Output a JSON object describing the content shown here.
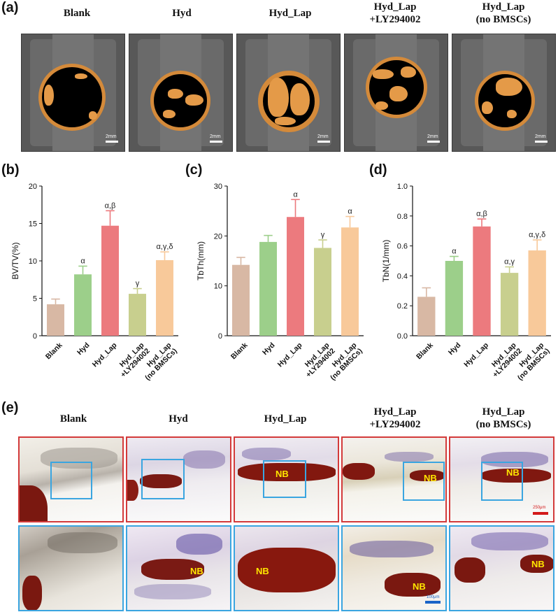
{
  "panel_labels": {
    "a": "(a)",
    "b": "(b)",
    "c": "(c)",
    "d": "(d)",
    "e": "(e)"
  },
  "groups": [
    {
      "line1": "Blank",
      "line2": ""
    },
    {
      "line1": "Hyd",
      "line2": ""
    },
    {
      "line1": "Hyd_Lap",
      "line2": ""
    },
    {
      "line1": "Hyd_Lap",
      "line2": "+LY294002"
    },
    {
      "line1": "Hyd_Lap",
      "line2": "(no BMSCs)"
    }
  ],
  "ct_scalebar": "2mm",
  "histology": {
    "nb_label": "NB",
    "scalebar_top": "250μm",
    "scalebar_bottom": "100μm"
  },
  "colors": {
    "bar_fills": [
      "#d8b8a4",
      "#9ccf8a",
      "#ec7a7e",
      "#c8cf8e",
      "#f8c99a"
    ],
    "ct_bone": "#e49a48",
    "hist_red_frame": "#d33a3a",
    "hist_blue_frame": "#3aa5e0",
    "nb_text": "#ffe600"
  },
  "chart_data": [
    {
      "type": "bar",
      "categories": [
        "Blank",
        "Hyd",
        "Hyd_Lap",
        "Hyd_Lap +LY294002",
        "Hyd_Lap (no BMSCs)"
      ],
      "tick_labels": [
        [
          "Blank"
        ],
        [
          "Hyd"
        ],
        [
          "Hyd_Lap"
        ],
        [
          "Hyd_Lap",
          "+LY294002"
        ],
        [
          "Hyd_Lap",
          "(no BMSCs)"
        ]
      ],
      "values": [
        4.2,
        8.2,
        14.7,
        5.6,
        10.1
      ],
      "errors": [
        0.7,
        1.1,
        2.0,
        0.7,
        1.1
      ],
      "annotations": [
        "",
        "α",
        "α,β",
        "γ",
        "α,γ,δ"
      ],
      "ylabel": "BV/TV(%)",
      "ylim": [
        0,
        20
      ],
      "yticks": [
        0,
        5,
        10,
        15,
        20
      ]
    },
    {
      "type": "bar",
      "categories": [
        "Blank",
        "Hyd",
        "Hyd_Lap",
        "Hyd_Lap +LY294002",
        "Hyd_Lap (no BMSCs)"
      ],
      "tick_labels": [
        [
          "Blank"
        ],
        [
          "Hyd"
        ],
        [
          "Hyd_Lap"
        ],
        [
          "Hyd_Lap",
          "+LY294002"
        ],
        [
          "Hyd_Lap",
          "(no BMSCs)"
        ]
      ],
      "values": [
        14.2,
        18.8,
        23.8,
        17.6,
        21.7
      ],
      "errors": [
        1.5,
        1.3,
        3.5,
        1.6,
        2.2
      ],
      "annotations": [
        "",
        "",
        "α",
        "γ",
        "α"
      ],
      "ylabel": "TbTh(mm)",
      "ylim": [
        0,
        30
      ],
      "yticks": [
        0,
        10,
        20,
        30
      ]
    },
    {
      "type": "bar",
      "categories": [
        "Blank",
        "Hyd",
        "Hyd_Lap",
        "Hyd_Lap +LY294002",
        "Hyd_Lap (no BMSCs)"
      ],
      "tick_labels": [
        [
          "Blank"
        ],
        [
          "Hyd"
        ],
        [
          "Hyd_Lap"
        ],
        [
          "Hyd_Lap",
          "+LY294002"
        ],
        [
          "Hyd_Lap",
          "(no BMSCs)"
        ]
      ],
      "values": [
        0.26,
        0.5,
        0.73,
        0.42,
        0.57
      ],
      "errors": [
        0.06,
        0.03,
        0.05,
        0.04,
        0.07
      ],
      "annotations": [
        "",
        "α",
        "α,β",
        "α,γ",
        "α,γ,δ"
      ],
      "ylabel": "TbN(1/mm)",
      "ylim": [
        0,
        1.0
      ],
      "yticks": [
        "0.0",
        "0.2",
        "0.4",
        "0.6",
        "0.8",
        "1.0"
      ]
    }
  ]
}
